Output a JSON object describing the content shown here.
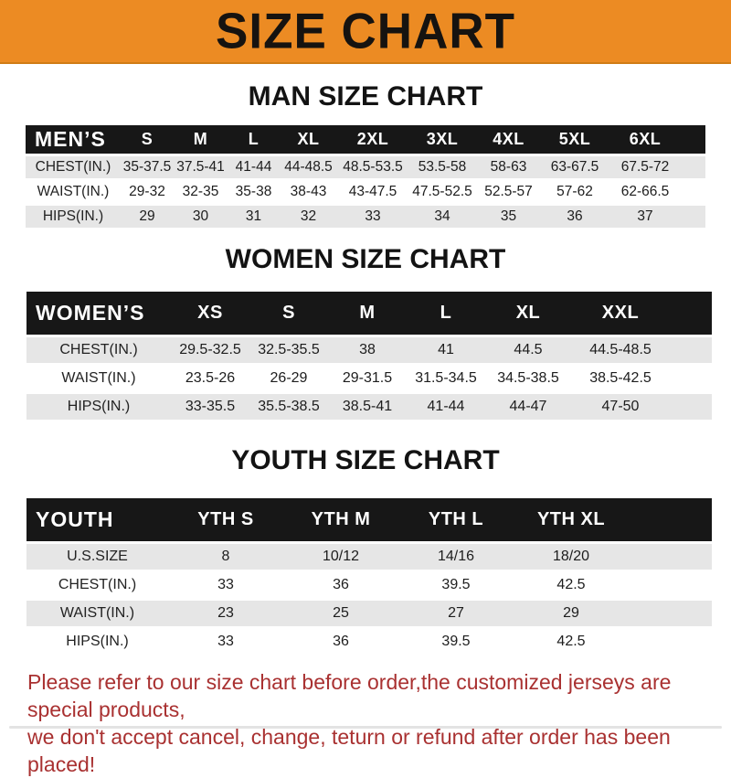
{
  "banner": {
    "title": "SIZE CHART"
  },
  "sections": [
    {
      "heading": "MAN SIZE CHART",
      "header_label": "MEN’S",
      "columns": [
        "S",
        "M",
        "L",
        "XL",
        "2XL",
        "3XL",
        "4XL",
        "5XL",
        "6XL"
      ],
      "rows": [
        {
          "label": "CHEST(IN.)",
          "values": [
            "35-37.5",
            "37.5-41",
            "41-44",
            "44-48.5",
            "48.5-53.5",
            "53.5-58",
            "58-63",
            "63-67.5",
            "67.5-72"
          ]
        },
        {
          "label": "WAIST(IN.)",
          "values": [
            "29-32",
            "32-35",
            "35-38",
            "38-43",
            "43-47.5",
            "47.5-52.5",
            "52.5-57",
            "57-62",
            "62-66.5"
          ]
        },
        {
          "label": "HIPS(IN.)",
          "values": [
            "29",
            "30",
            "31",
            "32",
            "33",
            "34",
            "35",
            "36",
            "37"
          ]
        }
      ]
    },
    {
      "heading": "WOMEN SIZE CHART",
      "header_label": "WOMEN’S",
      "columns": [
        "XS",
        "S",
        "M",
        "L",
        "XL",
        "XXL"
      ],
      "rows": [
        {
          "label": "CHEST(IN.)",
          "values": [
            "29.5-32.5",
            "32.5-35.5",
            "38",
            "41",
            "44.5",
            "44.5-48.5"
          ]
        },
        {
          "label": "WAIST(IN.)",
          "values": [
            "23.5-26",
            "26-29",
            "29-31.5",
            "31.5-34.5",
            "34.5-38.5",
            "38.5-42.5"
          ]
        },
        {
          "label": "HIPS(IN.)",
          "values": [
            "33-35.5",
            "35.5-38.5",
            "38.5-41",
            "41-44",
            "44-47",
            "47-50"
          ]
        }
      ]
    },
    {
      "heading": "YOUTH SIZE CHART",
      "header_label": "YOUTH",
      "columns": [
        "YTH S",
        "YTH M",
        "YTH L",
        "YTH XL"
      ],
      "rows": [
        {
          "label": "U.S.SIZE",
          "values": [
            "8",
            "10/12",
            "14/16",
            "18/20"
          ]
        },
        {
          "label": "CHEST(IN.)",
          "values": [
            "33",
            "36",
            "39.5",
            "42.5"
          ]
        },
        {
          "label": "WAIST(IN.)",
          "values": [
            "23",
            "25",
            "27",
            "29"
          ]
        },
        {
          "label": "HIPS(IN.)",
          "values": [
            "33",
            "36",
            "39.5",
            "42.5"
          ]
        }
      ]
    }
  ],
  "footer": {
    "line1": "Please refer to our size chart before order,the customized jerseys are special products,",
    "line2": "we don't accept cancel, change, teturn or refund after order has been placed!"
  },
  "colors": {
    "banner_orange": "#EC8B23",
    "table_header_black": "#171717",
    "row_gray": "#E6E6E6",
    "disclaimer_red": "#A93131"
  }
}
